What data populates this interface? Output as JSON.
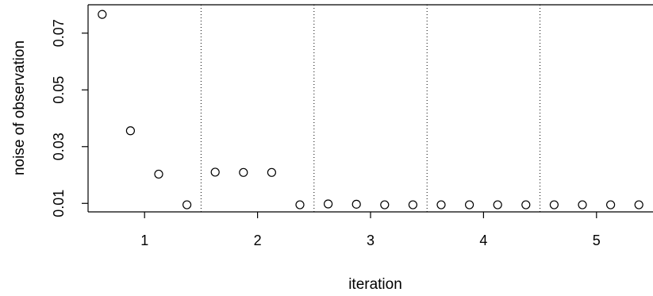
{
  "chart_data": {
    "type": "scatter",
    "title": "",
    "xlabel": "iteration",
    "ylabel": "noise of observation",
    "xlim": [
      0.5,
      5.5
    ],
    "ylim": [
      0.007,
      0.08
    ],
    "x_ticks": [
      1,
      2,
      3,
      4,
      5
    ],
    "x_tick_labels": [
      "1",
      "2",
      "3",
      "4",
      "5"
    ],
    "y_ticks": [
      0.01,
      0.03,
      0.05,
      0.07
    ],
    "y_tick_labels": [
      "0.01",
      "0.03",
      "0.05",
      "0.07"
    ],
    "separators_x": [
      1.5,
      2.5,
      3.5,
      4.5
    ],
    "grid": false,
    "marker": "open-circle",
    "points": [
      {
        "x": 0.625,
        "y": 0.0766
      },
      {
        "x": 0.875,
        "y": 0.0356
      },
      {
        "x": 1.125,
        "y": 0.0203
      },
      {
        "x": 1.375,
        "y": 0.0095
      },
      {
        "x": 1.625,
        "y": 0.021
      },
      {
        "x": 1.875,
        "y": 0.0209
      },
      {
        "x": 2.125,
        "y": 0.0209
      },
      {
        "x": 2.375,
        "y": 0.0095
      },
      {
        "x": 2.625,
        "y": 0.0098
      },
      {
        "x": 2.875,
        "y": 0.0097
      },
      {
        "x": 3.125,
        "y": 0.0095
      },
      {
        "x": 3.375,
        "y": 0.0095
      },
      {
        "x": 3.625,
        "y": 0.0095
      },
      {
        "x": 3.875,
        "y": 0.0095
      },
      {
        "x": 4.125,
        "y": 0.0095
      },
      {
        "x": 4.375,
        "y": 0.0095
      },
      {
        "x": 4.625,
        "y": 0.0095
      },
      {
        "x": 4.875,
        "y": 0.0095
      },
      {
        "x": 5.125,
        "y": 0.0095
      },
      {
        "x": 5.375,
        "y": 0.0095
      }
    ]
  }
}
